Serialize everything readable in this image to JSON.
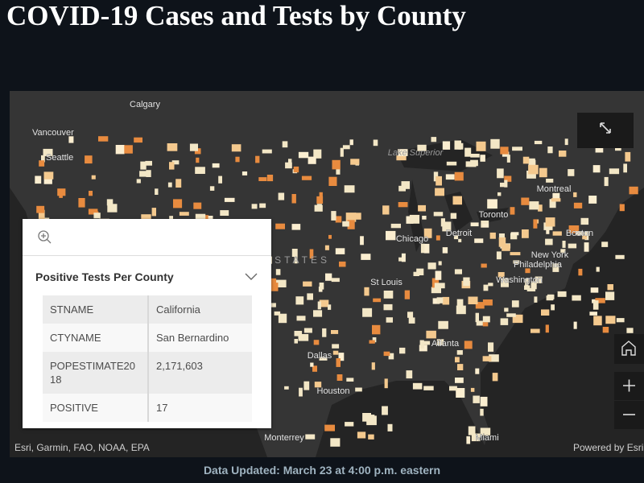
{
  "header": {
    "title": "COVID-19 Cases and Tests by County"
  },
  "map": {
    "labels": [
      "Calgary",
      "Vancouver",
      "Seattle",
      "Lake Superior",
      "Montreal",
      "Toronto",
      "Chicago",
      "Detroit",
      "Boston",
      "New York",
      "Philadelphia",
      "Washington",
      "St Louis",
      "Atlanta",
      "Dallas",
      "Houston",
      "Monterrey",
      "Miami",
      "UNITED STATES"
    ],
    "attribution": "Esri, Garmin, FAO, NOAA, EPA",
    "powered_by": "Powered by Esri"
  },
  "popup": {
    "title": "Positive Tests Per County",
    "table": {
      "rows": [
        [
          "STNAME",
          "California"
        ],
        [
          "CTYNAME",
          "San Bernardino"
        ],
        [
          "POPESTIMATE2018",
          "2,171,603"
        ],
        [
          "POSITIVE",
          "17"
        ]
      ]
    }
  },
  "footer": {
    "text": "Data Updated: March 23 at 4:00 p.m. eastern"
  }
}
